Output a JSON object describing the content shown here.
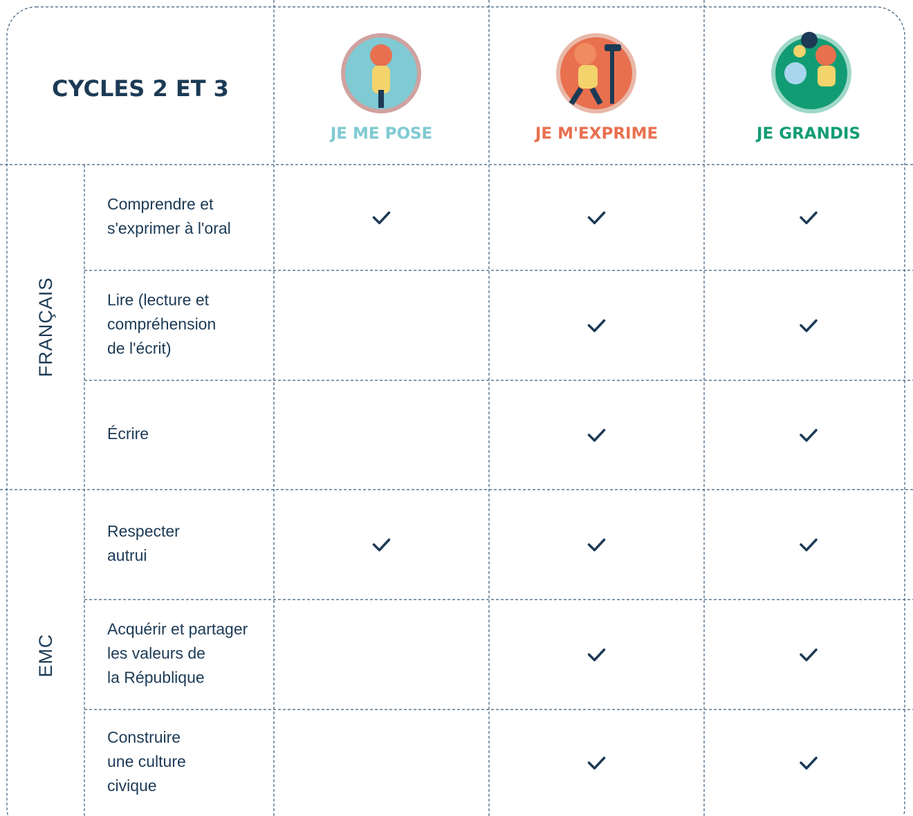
{
  "header": {
    "title": "CYCLES 2 ET 3"
  },
  "columns": [
    {
      "label": "JE ME POSE",
      "color": "#7fcad3"
    },
    {
      "label": "JE M'EXPRIME",
      "color": "#e8704f"
    },
    {
      "label": "JE GRANDIS",
      "color": "#129c74"
    }
  ],
  "groups": [
    {
      "label": "FRANÇAIS",
      "rows": [
        {
          "lines": [
            "Comprendre et",
            "s'exprimer à l'oral"
          ],
          "checks": [
            true,
            true,
            true
          ]
        },
        {
          "lines": [
            "Lire (lecture et",
            "compréhension",
            "de l'écrit)"
          ],
          "checks": [
            false,
            true,
            true
          ]
        },
        {
          "lines": [
            "Écrire"
          ],
          "checks": [
            false,
            true,
            true
          ]
        }
      ]
    },
    {
      "label": "EMC",
      "rows": [
        {
          "lines": [
            "Respecter",
            "autrui"
          ],
          "checks": [
            true,
            true,
            true
          ]
        },
        {
          "lines": [
            "Acquérir et partager",
            "les valeurs de",
            "la République"
          ],
          "checks": [
            false,
            true,
            true
          ]
        },
        {
          "lines": [
            "Construire",
            "une culture",
            "civique"
          ],
          "checks": [
            false,
            true,
            true
          ]
        }
      ]
    }
  ]
}
